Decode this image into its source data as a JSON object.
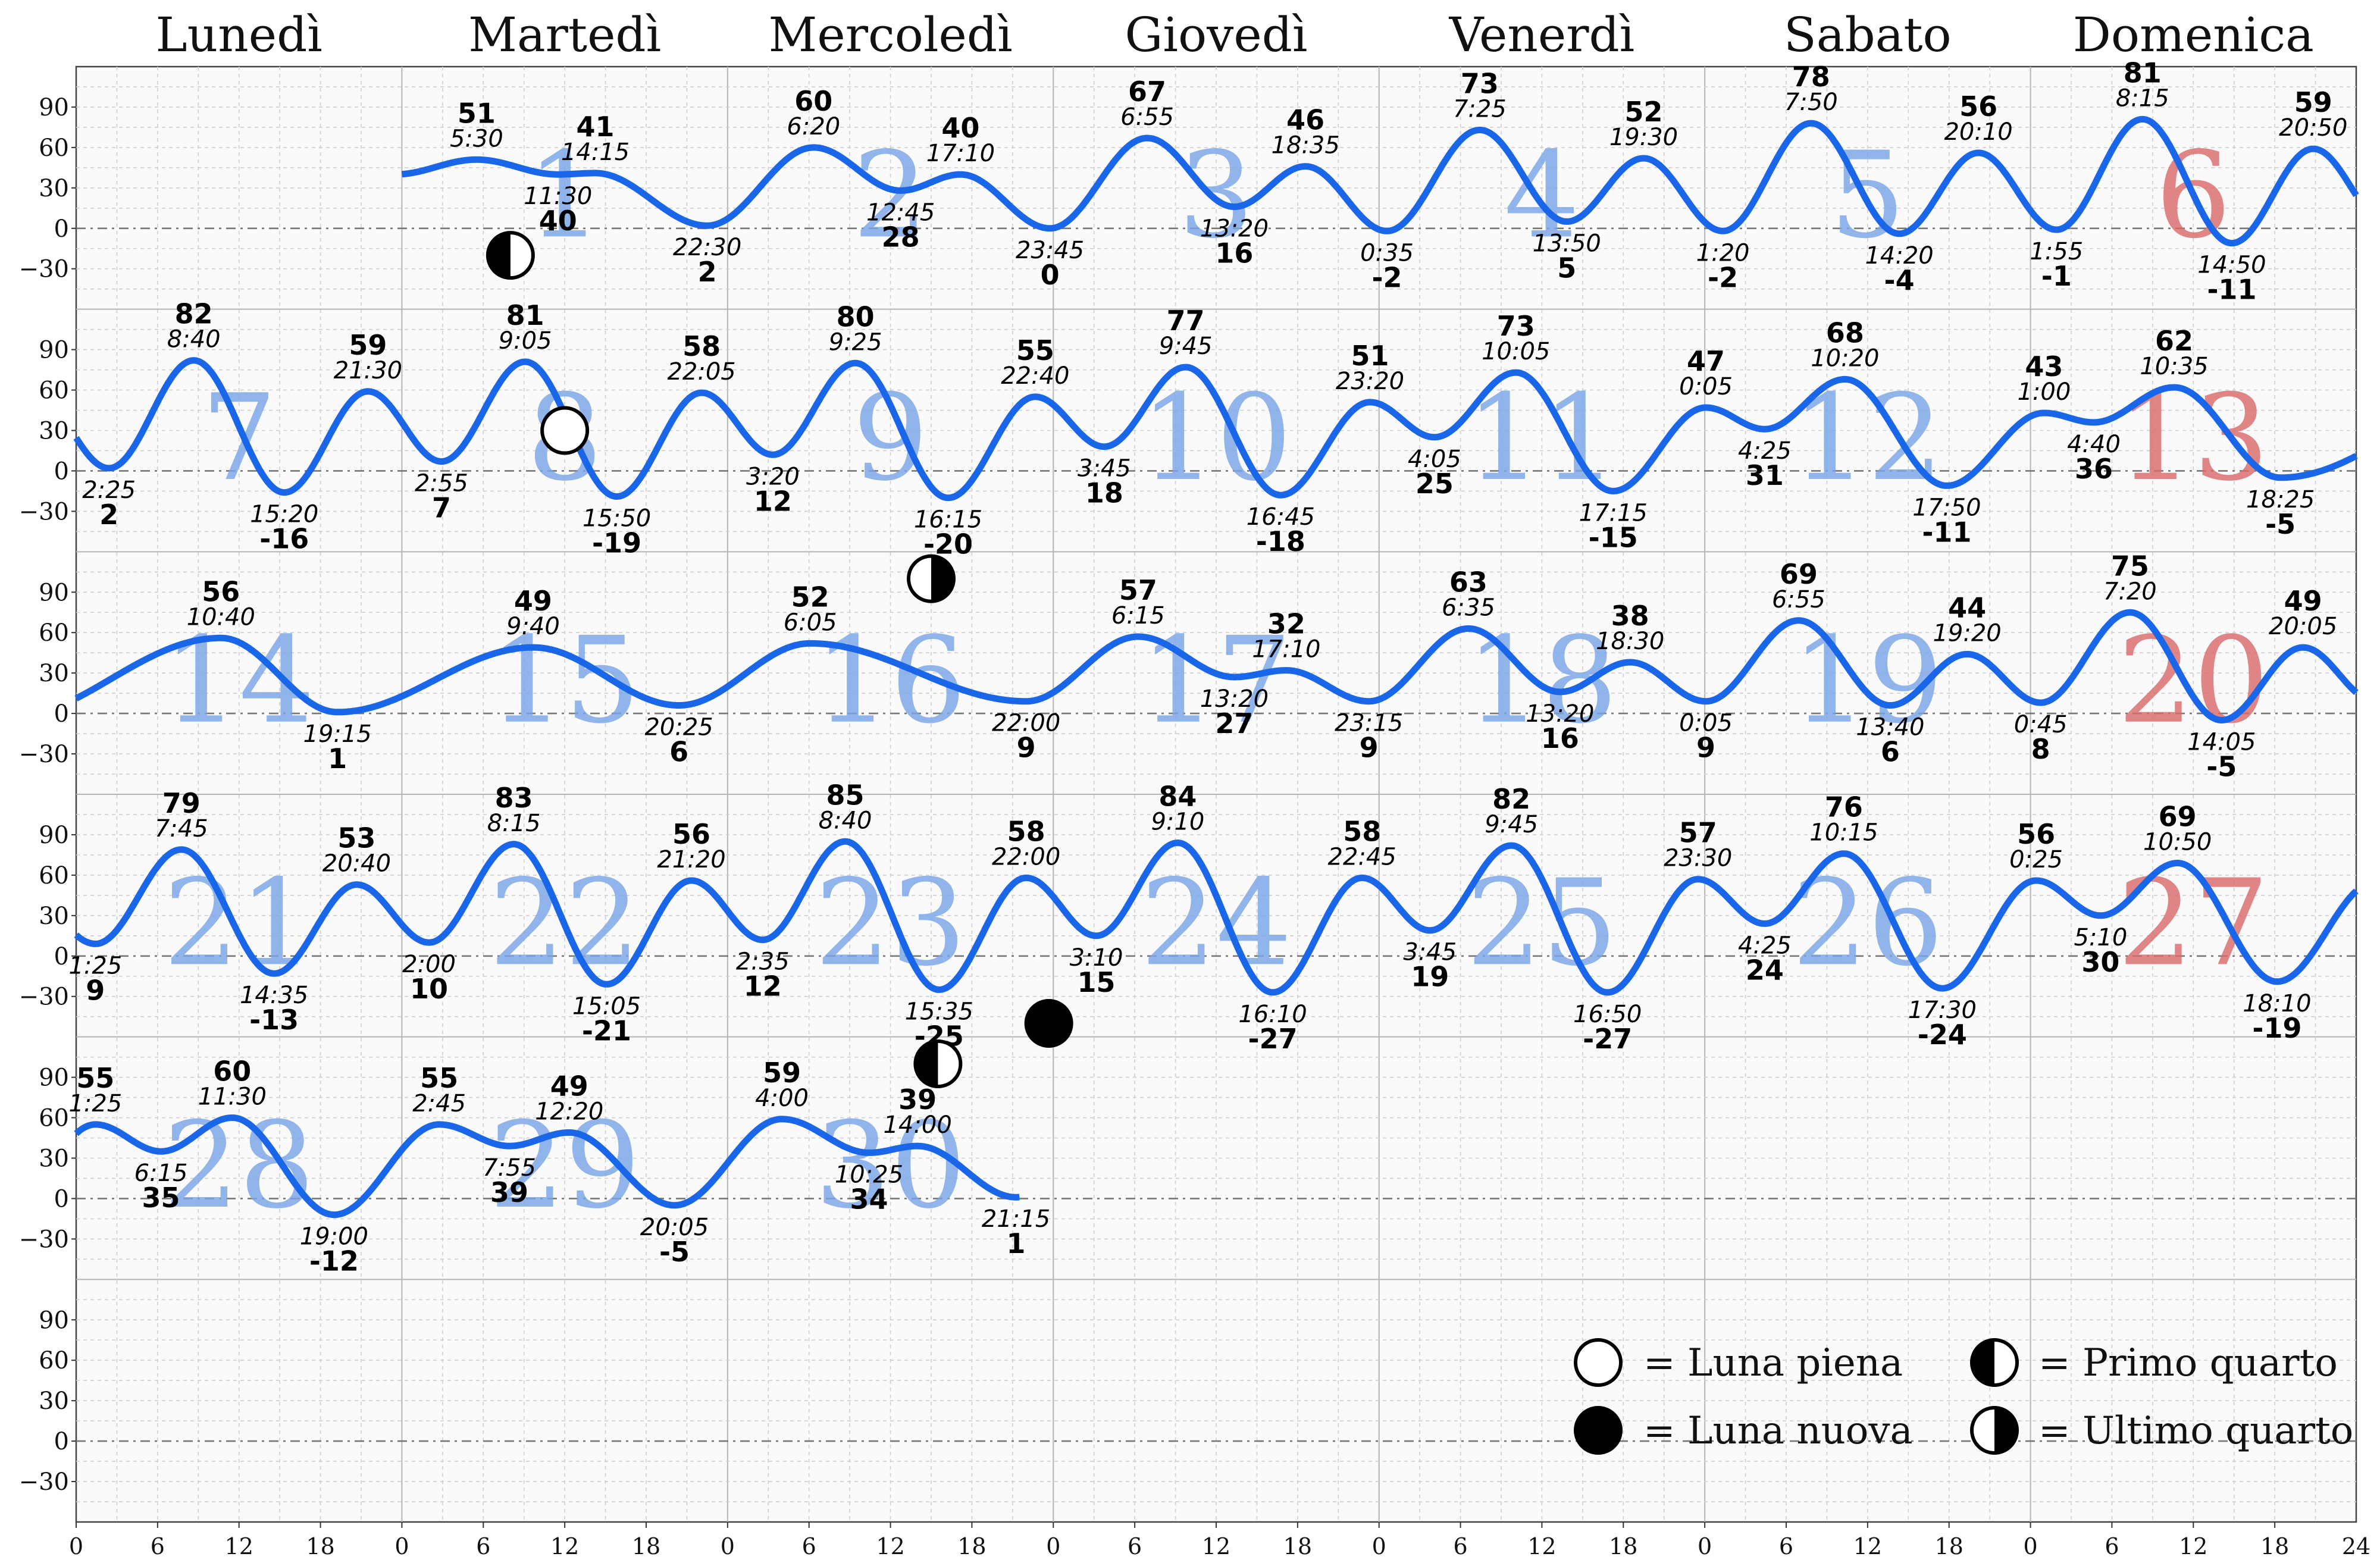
{
  "chart_data": {
    "type": "line",
    "day_names": [
      "Lunedì",
      "Martedì",
      "Mercoledì",
      "Giovedì",
      "Venerdì",
      "Sabato",
      "Domenica"
    ],
    "yticks": [
      90,
      60,
      30,
      0,
      -30
    ],
    "ylim": [
      -60,
      120
    ],
    "xticks": [
      0,
      6,
      12,
      18
    ],
    "xtick_last": 24,
    "first_weekday": 1,
    "days_in_month": 30,
    "grid": true,
    "colors": {
      "line": "#1a66e8",
      "weekday": "#7aa6e6",
      "sunday": "#d96b6b"
    },
    "extremes": [
      {
        "t": "5:30",
        "v": 51,
        "type": "high"
      },
      {
        "t": "11:30",
        "v": 40,
        "type": "low"
      },
      {
        "t": "14:15",
        "v": 41,
        "type": "high"
      },
      {
        "t": "22:30",
        "v": 2,
        "type": "low"
      },
      {
        "t": "6:20",
        "v": 60,
        "type": "high"
      },
      {
        "t": "12:45",
        "v": 28,
        "type": "low"
      },
      {
        "t": "17:10",
        "v": 40,
        "type": "high"
      },
      {
        "t": "23:45",
        "v": 0,
        "type": "low"
      },
      {
        "t": "6:55",
        "v": 67,
        "type": "high"
      },
      {
        "t": "13:20",
        "v": 16,
        "type": "low"
      },
      {
        "t": "18:35",
        "v": 46,
        "type": "high"
      },
      {
        "t": "0:35",
        "v": -2,
        "type": "low"
      },
      {
        "t": "7:25",
        "v": 73,
        "type": "high"
      },
      {
        "t": "13:50",
        "v": 5,
        "type": "low"
      },
      {
        "t": "19:30",
        "v": 52,
        "type": "high"
      },
      {
        "t": "1:20",
        "v": -2,
        "type": "low"
      },
      {
        "t": "7:50",
        "v": 78,
        "type": "high"
      },
      {
        "t": "14:20",
        "v": -4,
        "type": "low"
      },
      {
        "t": "20:10",
        "v": 56,
        "type": "high"
      },
      {
        "t": "1:55",
        "v": -1,
        "type": "low"
      },
      {
        "t": "8:15",
        "v": 81,
        "type": "high"
      },
      {
        "t": "14:50",
        "v": -11,
        "type": "low"
      },
      {
        "t": "20:50",
        "v": 59,
        "type": "high"
      },
      {
        "t": "2:25",
        "v": 2,
        "type": "low"
      },
      {
        "t": "8:40",
        "v": 82,
        "type": "high"
      },
      {
        "t": "15:20",
        "v": -16,
        "type": "low"
      },
      {
        "t": "21:30",
        "v": 59,
        "type": "high"
      },
      {
        "t": "2:55",
        "v": 7,
        "type": "low"
      },
      {
        "t": "9:05",
        "v": 81,
        "type": "high"
      },
      {
        "t": "15:50",
        "v": -19,
        "type": "low"
      },
      {
        "t": "22:05",
        "v": 58,
        "type": "high"
      },
      {
        "t": "3:20",
        "v": 12,
        "type": "low"
      },
      {
        "t": "9:25",
        "v": 80,
        "type": "high"
      },
      {
        "t": "16:15",
        "v": -20,
        "type": "low"
      },
      {
        "t": "22:40",
        "v": 55,
        "type": "high"
      },
      {
        "t": "3:45",
        "v": 18,
        "type": "low"
      },
      {
        "t": "9:45",
        "v": 77,
        "type": "high"
      },
      {
        "t": "16:45",
        "v": -18,
        "type": "low"
      },
      {
        "t": "23:20",
        "v": 51,
        "type": "high"
      },
      {
        "t": "4:05",
        "v": 25,
        "type": "low"
      },
      {
        "t": "10:05",
        "v": 73,
        "type": "high"
      },
      {
        "t": "17:15",
        "v": -15,
        "type": "low"
      },
      {
        "t": "0:05",
        "v": 47,
        "type": "high"
      },
      {
        "t": "4:25",
        "v": 31,
        "type": "low"
      },
      {
        "t": "10:20",
        "v": 68,
        "type": "high"
      },
      {
        "t": "17:50",
        "v": -11,
        "type": "low"
      },
      {
        "t": "1:00",
        "v": 43,
        "type": "high"
      },
      {
        "t": "4:40",
        "v": 36,
        "type": "low"
      },
      {
        "t": "10:35",
        "v": 62,
        "type": "high"
      },
      {
        "t": "18:25",
        "v": -5,
        "type": "low"
      },
      {
        "t": "10:40",
        "v": 56,
        "type": "high"
      },
      {
        "t": "19:15",
        "v": 1,
        "type": "low"
      },
      {
        "t": "9:40",
        "v": 49,
        "type": "high"
      },
      {
        "t": "20:25",
        "v": 6,
        "type": "low"
      },
      {
        "t": "6:05",
        "v": 52,
        "type": "high"
      },
      {
        "t": "22:00",
        "v": 9,
        "type": "low"
      },
      {
        "t": "6:15",
        "v": 57,
        "type": "high"
      },
      {
        "t": "13:20",
        "v": 27,
        "type": "low"
      },
      {
        "t": "17:10",
        "v": 32,
        "type": "high"
      },
      {
        "t": "23:15",
        "v": 9,
        "type": "low"
      },
      {
        "t": "6:35",
        "v": 63,
        "type": "high"
      },
      {
        "t": "13:20",
        "v": 16,
        "type": "low"
      },
      {
        "t": "18:30",
        "v": 38,
        "type": "high"
      },
      {
        "t": "0:05",
        "v": 9,
        "type": "low"
      },
      {
        "t": "6:55",
        "v": 69,
        "type": "high"
      },
      {
        "t": "13:40",
        "v": 6,
        "type": "low"
      },
      {
        "t": "19:20",
        "v": 44,
        "type": "high"
      },
      {
        "t": "0:45",
        "v": 8,
        "type": "low"
      },
      {
        "t": "7:20",
        "v": 75,
        "type": "high"
      },
      {
        "t": "14:05",
        "v": -5,
        "type": "low"
      },
      {
        "t": "20:05",
        "v": 49,
        "type": "high"
      },
      {
        "t": "1:25",
        "v": 9,
        "type": "low"
      },
      {
        "t": "7:45",
        "v": 79,
        "type": "high"
      },
      {
        "t": "14:35",
        "v": -13,
        "type": "low"
      },
      {
        "t": "20:40",
        "v": 53,
        "type": "high"
      },
      {
        "t": "2:00",
        "v": 10,
        "type": "low"
      },
      {
        "t": "8:15",
        "v": 83,
        "type": "high"
      },
      {
        "t": "15:05",
        "v": -21,
        "type": "low"
      },
      {
        "t": "21:20",
        "v": 56,
        "type": "high"
      },
      {
        "t": "2:35",
        "v": 12,
        "type": "low"
      },
      {
        "t": "8:40",
        "v": 85,
        "type": "high"
      },
      {
        "t": "15:35",
        "v": -25,
        "type": "low"
      },
      {
        "t": "22:00",
        "v": 58,
        "type": "high"
      },
      {
        "t": "3:10",
        "v": 15,
        "type": "low"
      },
      {
        "t": "9:10",
        "v": 84,
        "type": "high"
      },
      {
        "t": "16:10",
        "v": -27,
        "type": "low"
      },
      {
        "t": "22:45",
        "v": 58,
        "type": "high"
      },
      {
        "t": "3:45",
        "v": 19,
        "type": "low"
      },
      {
        "t": "9:45",
        "v": 82,
        "type": "high"
      },
      {
        "t": "16:50",
        "v": -27,
        "type": "low"
      },
      {
        "t": "23:30",
        "v": 57,
        "type": "high"
      },
      {
        "t": "4:25",
        "v": 24,
        "type": "low"
      },
      {
        "t": "10:15",
        "v": 76,
        "type": "high"
      },
      {
        "t": "17:30",
        "v": -24,
        "type": "low"
      },
      {
        "t": "0:25",
        "v": 56,
        "type": "high"
      },
      {
        "t": "5:10",
        "v": 30,
        "type": "low"
      },
      {
        "t": "10:50",
        "v": 69,
        "type": "high"
      },
      {
        "t": "18:10",
        "v": -19,
        "type": "low"
      },
      {
        "t": "1:25",
        "v": 55,
        "type": "high"
      },
      {
        "t": "6:15",
        "v": 35,
        "type": "low"
      },
      {
        "t": "11:30",
        "v": 60,
        "type": "high"
      },
      {
        "t": "19:00",
        "v": -12,
        "type": "low"
      },
      {
        "t": "2:45",
        "v": 55,
        "type": "high"
      },
      {
        "t": "7:55",
        "v": 39,
        "type": "low"
      },
      {
        "t": "12:20",
        "v": 49,
        "type": "high"
      },
      {
        "t": "20:05",
        "v": -5,
        "type": "low"
      },
      {
        "t": "4:00",
        "v": 59,
        "type": "high"
      },
      {
        "t": "10:25",
        "v": 34,
        "type": "low"
      },
      {
        "t": "14:00",
        "v": 39,
        "type": "high"
      },
      {
        "t": "21:15",
        "v": 1,
        "type": "low"
      }
    ],
    "moon_phases": [
      {
        "day": 1,
        "time": "8:00",
        "phase": "first_quarter",
        "level": -20
      },
      {
        "day": 8,
        "time": "12:00",
        "phase": "full",
        "level": 30
      },
      {
        "day": 16,
        "time": "15:00",
        "phase": "last_quarter",
        "level": 100
      },
      {
        "day": 23,
        "time": "23:40",
        "phase": "new",
        "level": -50
      },
      {
        "day": 30,
        "time": "15:30",
        "phase": "first_quarter",
        "level": 100
      }
    ]
  },
  "legend": {
    "full": "= Luna piena",
    "first_quarter": "= Primo quarto",
    "new": "= Luna nuova",
    "last_quarter": "= Ultimo quarto"
  }
}
